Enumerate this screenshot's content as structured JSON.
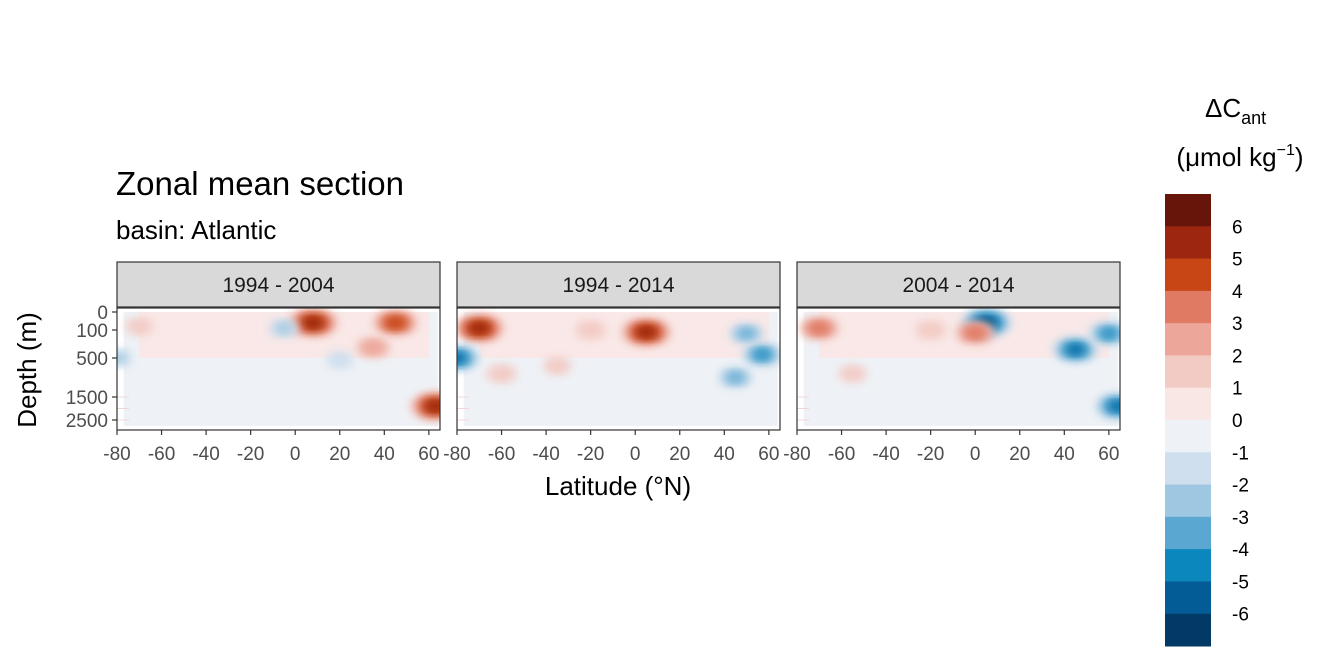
{
  "chart_data": {
    "type": "heatmap",
    "title": "Zonal mean section",
    "subtitle": "basin: Atlantic",
    "xlabel": "Latitude (°N)",
    "ylabel": "Depth (m)",
    "xlim": [
      -80,
      65
    ],
    "x_ticks": [
      "-80",
      "-60",
      "-40",
      "-20",
      "0",
      "20",
      "40",
      "60"
    ],
    "y_ticks": [
      "0",
      "100",
      "500",
      "1500",
      "2500"
    ],
    "panels": [
      {
        "label": "1994 - 2004",
        "features": [
          {
            "lat": 8,
            "depth": 60,
            "value": 6
          },
          {
            "lat": 45,
            "depth": 60,
            "value": 5
          },
          {
            "lat": 63,
            "depth": 1900,
            "value": 6
          },
          {
            "lat": 35,
            "depth": 350,
            "value": 3
          },
          {
            "lat": -70,
            "depth": 80,
            "value": 1.5
          },
          {
            "lat": -5,
            "depth": 90,
            "value": -2
          },
          {
            "lat": -80,
            "depth": 500,
            "value": -2
          },
          {
            "lat": 20,
            "depth": 550,
            "value": -1.5
          }
        ]
      },
      {
        "label": "1994 - 2014",
        "features": [
          {
            "lat": -70,
            "depth": 90,
            "value": 6
          },
          {
            "lat": 5,
            "depth": 130,
            "value": 6
          },
          {
            "lat": -20,
            "depth": 100,
            "value": 2
          },
          {
            "lat": -60,
            "depth": 900,
            "value": 2
          },
          {
            "lat": -35,
            "depth": 700,
            "value": 1.5
          },
          {
            "lat": 50,
            "depth": 150,
            "value": -3
          },
          {
            "lat": 57,
            "depth": 450,
            "value": -4
          },
          {
            "lat": -80,
            "depth": 500,
            "value": -5
          },
          {
            "lat": 45,
            "depth": 1000,
            "value": -3
          }
        ]
      },
      {
        "label": "2004 - 2014",
        "features": [
          {
            "lat": 5,
            "depth": 60,
            "value": -6
          },
          {
            "lat": 45,
            "depth": 380,
            "value": -5
          },
          {
            "lat": 60,
            "depth": 150,
            "value": -4
          },
          {
            "lat": 0,
            "depth": 140,
            "value": 4
          },
          {
            "lat": -70,
            "depth": 90,
            "value": 4
          },
          {
            "lat": -20,
            "depth": 100,
            "value": 2
          },
          {
            "lat": -55,
            "depth": 900,
            "value": 1.5
          },
          {
            "lat": 64,
            "depth": 1900,
            "value": -5
          }
        ]
      }
    ],
    "legend": {
      "title_main": "ΔC",
      "title_sub": "ant",
      "unit_text": "(μmol kg",
      "unit_sup": "−1",
      "unit_close": ")",
      "labels": [
        "6",
        "5",
        "4",
        "3",
        "2",
        "1",
        "0",
        "-1",
        "-2",
        "-3",
        "-4",
        "-5",
        "-6"
      ],
      "colors": [
        "#67150a",
        "#9c260f",
        "#c84616",
        "#e07a63",
        "#eda69a",
        "#f3cbc5",
        "#f9e7e6",
        "#eef1f6",
        "#cfdfee",
        "#9ec7e1",
        "#5aa7d1",
        "#0c87bd",
        "#045c96",
        "#023a67"
      ],
      "placement": "right"
    }
  }
}
